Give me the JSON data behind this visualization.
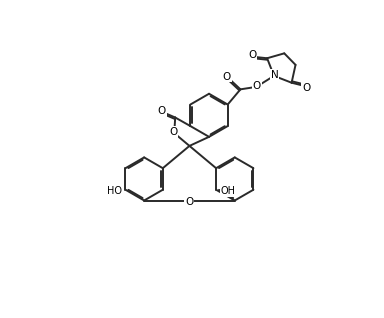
{
  "background": "#ffffff",
  "line_color": "#2a2a2a",
  "line_width": 1.4,
  "text_color": "#000000",
  "fig_width": 3.84,
  "fig_height": 3.18,
  "dpi": 100,
  "xlim": [
    0,
    10
  ],
  "ylim": [
    0,
    10
  ]
}
